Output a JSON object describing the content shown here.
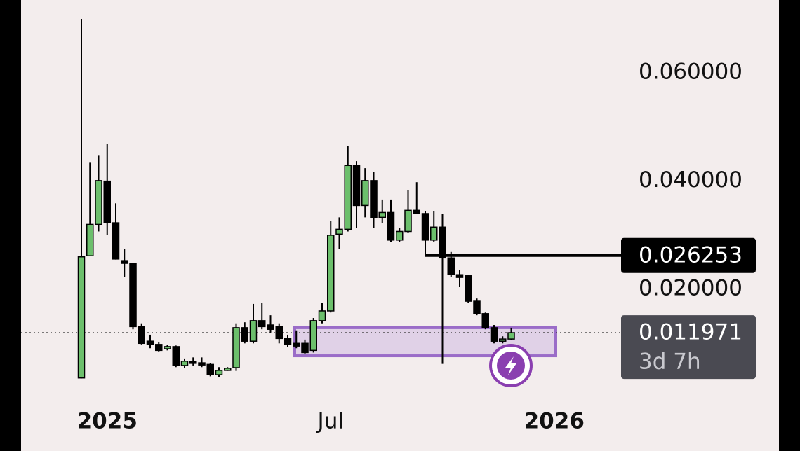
{
  "chart_data": {
    "type": "candlestick",
    "categories": [
      null,
      null,
      null,
      "2025",
      null,
      null,
      null,
      null,
      null,
      null,
      null,
      null,
      null,
      null,
      null,
      null,
      null,
      null,
      null,
      null,
      null,
      null,
      null,
      null,
      null,
      null,
      null,
      null,
      null,
      "Jul",
      null,
      null,
      null,
      null,
      null,
      null,
      null,
      null,
      null,
      null,
      null,
      null,
      null,
      null,
      null,
      null,
      null,
      null,
      null,
      null,
      null,
      null,
      null,
      null,
      null,
      "2026",
      null
    ],
    "open": [
      0.0036,
      0.0262,
      0.032,
      0.04,
      0.0323,
      0.0253,
      0.0248,
      0.0131,
      0.0104,
      0.0098,
      0.009,
      0.0094,
      0.0059,
      0.0067,
      0.0064,
      0.0061,
      0.0042,
      0.005,
      0.0055,
      0.0129,
      0.0104,
      0.0142,
      0.0134,
      0.0131,
      0.0109,
      0.01,
      0.01,
      0.0087,
      0.0142,
      0.016,
      0.0302,
      0.0311,
      0.0429,
      0.0355,
      0.0401,
      0.0333,
      0.0342,
      0.0291,
      0.0307,
      0.0346,
      0.034,
      0.0291,
      0.0315,
      0.0258,
      0.0227,
      0.0225,
      0.0178,
      0.0155,
      0.0129,
      0.0104,
      0.0108,
      null,
      null,
      null,
      null,
      null,
      null
    ],
    "high": [
      0.07,
      0.0434,
      0.0447,
      0.0469,
      0.0359,
      0.0275,
      0.0249,
      0.0137,
      0.0116,
      0.0103,
      0.0097,
      0.0096,
      0.0072,
      0.0074,
      0.0074,
      0.0064,
      0.0056,
      0.0056,
      0.0137,
      0.0139,
      0.0173,
      0.0175,
      0.0152,
      0.0137,
      0.0116,
      0.0124,
      0.0107,
      0.0147,
      0.0175,
      0.0326,
      0.0333,
      0.0465,
      0.0437,
      0.0424,
      0.0417,
      0.0366,
      0.0366,
      0.0313,
      0.0383,
      0.0398,
      0.0344,
      0.0344,
      0.034,
      0.0269,
      0.0236,
      0.0227,
      0.0183,
      0.0157,
      0.0134,
      0.0113,
      0.0129,
      null,
      null,
      null,
      null,
      null,
      null
    ],
    "low": [
      0.0035,
      0.0262,
      0.0307,
      0.0301,
      0.0255,
      0.0223,
      0.0126,
      0.0098,
      0.0091,
      0.0085,
      0.0087,
      0.0056,
      0.0055,
      0.0059,
      0.0056,
      0.0039,
      0.0038,
      0.0049,
      0.0049,
      0.01,
      0.01,
      0.0126,
      0.012,
      0.01,
      0.0093,
      0.0091,
      0.0081,
      0.0083,
      0.0137,
      0.0157,
      0.0275,
      0.0307,
      0.0314,
      0.0333,
      0.0314,
      0.0323,
      0.0288,
      0.0287,
      0.0305,
      0.0339,
      0.0266,
      0.0288,
      0.0062,
      0.0223,
      0.0204,
      0.0175,
      0.0152,
      0.0126,
      0.01,
      0.01,
      0.0106,
      null,
      null,
      null,
      null,
      null,
      null
    ],
    "close": [
      0.026,
      0.032,
      0.0401,
      0.0323,
      0.0256,
      0.0248,
      0.0131,
      0.01,
      0.0098,
      0.0087,
      0.0094,
      0.0059,
      0.0067,
      0.0063,
      0.006,
      0.0042,
      0.005,
      0.0054,
      0.0129,
      0.0104,
      0.0142,
      0.0131,
      0.0126,
      0.0109,
      0.0098,
      0.0095,
      0.0083,
      0.0142,
      0.016,
      0.03,
      0.0311,
      0.0429,
      0.0355,
      0.0401,
      0.0333,
      0.0342,
      0.0291,
      0.0307,
      0.0346,
      0.034,
      0.0291,
      0.0315,
      0.0258,
      0.0227,
      0.0222,
      0.0178,
      0.0155,
      0.0129,
      0.0104,
      0.0108,
      0.011971,
      null,
      null,
      null,
      null,
      null,
      null
    ],
    "up_color": "#6cbf6c",
    "down_color": "#000000",
    "ylim": [
      0,
      0.0735
    ],
    "yticks": [
      {
        "value": 0.06,
        "label": "0.060000"
      },
      {
        "value": 0.04,
        "label": "0.040000"
      },
      {
        "value": 0.02,
        "label": "0.020000"
      }
    ],
    "price_line": {
      "value": 0.026253,
      "label": "0.026253"
    },
    "current_price": {
      "value": 0.011971,
      "label": "0.011971"
    },
    "countdown": "3d 7h",
    "zone": {
      "top": 0.0129,
      "bottom": 0.0077
    }
  }
}
